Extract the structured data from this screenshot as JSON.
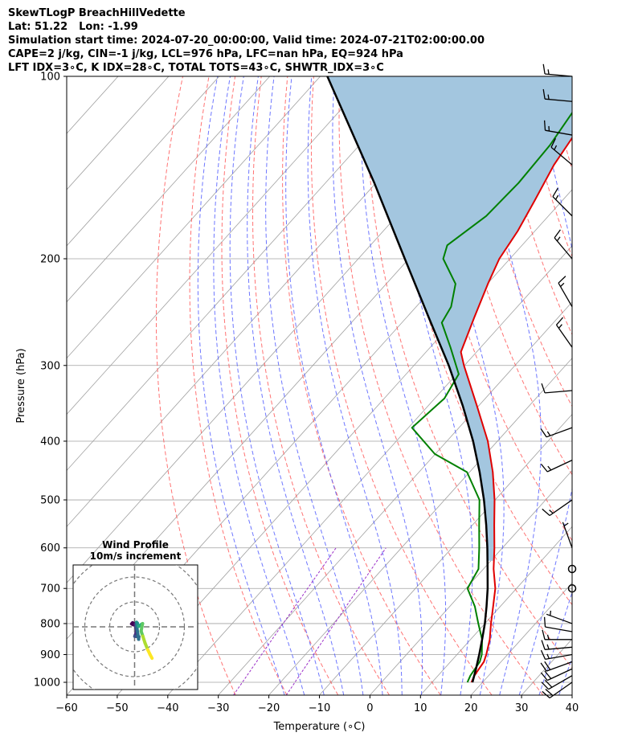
{
  "header": {
    "title": "SkewTLogP BreachHillVedette",
    "lat_label": "Lat: 51.22",
    "lon_label": "Lon: -1.99",
    "sim_line": "Simulation start time: 2024-07-20_00:00:00, Valid time: 2024-07-21T02:00:00.00",
    "cape_line": "CAPE=2 j/kg, CIN=-1 j/kg, LCL=976 hPa, LFC=nan hPa, EQ=924 hPa",
    "index_line": "LFT IDX=3∘C, K IDX=28∘C, TOTAL TOTS=43∘C, SHWTR_IDX=3∘C"
  },
  "colors": {
    "temperature": "#e00000",
    "dewpoint": "#008000",
    "parcel": "#000000",
    "cape_fill": "#a3c6df",
    "dry_adiabat": "#ff5050",
    "moist_adiabat": "#4a55ff",
    "mixing_ratio": "#9b30c8",
    "isotherm": "#a0a0a0"
  },
  "chart_data": {
    "type": "skewt",
    "xlabel": "Temperature (∘C)",
    "ylabel": "Pressure (hPa)",
    "xlim": [
      -60,
      40
    ],
    "ylim": [
      1050,
      100
    ],
    "xticks": [
      -60,
      -50,
      -40,
      -30,
      -20,
      -10,
      0,
      10,
      20,
      30,
      40
    ],
    "xtick_labels": [
      "−60",
      "−50",
      "−40",
      "−30",
      "−20",
      "−10",
      "0",
      "10",
      "20",
      "30",
      "40"
    ],
    "yticks": [
      1000,
      900,
      800,
      700,
      600,
      500,
      400,
      300,
      200,
      100
    ],
    "ytick_labels": [
      "1000",
      "900",
      "800",
      "700",
      "600",
      "500",
      "400",
      "300",
      "200",
      "100"
    ],
    "temperature": [
      {
        "p": 1000,
        "t": 17.8
      },
      {
        "p": 975,
        "t": 17.2
      },
      {
        "p": 950,
        "t": 16.9
      },
      {
        "p": 925,
        "t": 16.6
      },
      {
        "p": 900,
        "t": 15.8
      },
      {
        "p": 850,
        "t": 13.8
      },
      {
        "p": 800,
        "t": 11.2
      },
      {
        "p": 750,
        "t": 8.6
      },
      {
        "p": 700,
        "t": 5.8
      },
      {
        "p": 650,
        "t": 2.0
      },
      {
        "p": 600,
        "t": -1.6
      },
      {
        "p": 550,
        "t": -5.7
      },
      {
        "p": 500,
        "t": -10.1
      },
      {
        "p": 450,
        "t": -15.4
      },
      {
        "p": 400,
        "t": -21.9
      },
      {
        "p": 350,
        "t": -30.3
      },
      {
        "p": 300,
        "t": -40.1
      },
      {
        "p": 285,
        "t": -43.1
      },
      {
        "p": 250,
        "t": -46.6
      },
      {
        "p": 220,
        "t": -49.9
      },
      {
        "p": 200,
        "t": -52.1
      },
      {
        "p": 180,
        "t": -53.4
      },
      {
        "p": 160,
        "t": -55.5
      },
      {
        "p": 140,
        "t": -58.0
      },
      {
        "p": 120,
        "t": -59.8
      },
      {
        "p": 100,
        "t": -63.1
      }
    ],
    "dewpoint": [
      {
        "p": 1000,
        "t": 17.0
      },
      {
        "p": 975,
        "t": 16.4
      },
      {
        "p": 950,
        "t": 16.1
      },
      {
        "p": 925,
        "t": 15.8
      },
      {
        "p": 900,
        "t": 14.9
      },
      {
        "p": 850,
        "t": 12.3
      },
      {
        "p": 800,
        "t": 8.7
      },
      {
        "p": 750,
        "t": 5.0
      },
      {
        "p": 700,
        "t": 0.3
      },
      {
        "p": 650,
        "t": -1.0
      },
      {
        "p": 600,
        "t": -4.6
      },
      {
        "p": 550,
        "t": -8.7
      },
      {
        "p": 500,
        "t": -13.1
      },
      {
        "p": 450,
        "t": -20.5
      },
      {
        "p": 420,
        "t": -30.1
      },
      {
        "p": 380,
        "t": -39.3
      },
      {
        "p": 340,
        "t": -38.1
      },
      {
        "p": 310,
        "t": -39.6
      },
      {
        "p": 280,
        "t": -46.0
      },
      {
        "p": 255,
        "t": -52.1
      },
      {
        "p": 240,
        "t": -53.1
      },
      {
        "p": 220,
        "t": -56.3
      },
      {
        "p": 200,
        "t": -63.2
      },
      {
        "p": 190,
        "t": -64.8
      },
      {
        "p": 170,
        "t": -62.3
      },
      {
        "p": 150,
        "t": -61.8
      },
      {
        "p": 130,
        "t": -62.3
      },
      {
        "p": 100,
        "t": -65.2
      }
    ],
    "parcel": [
      {
        "p": 1000,
        "t": 18.0
      },
      {
        "p": 950,
        "t": 16.3
      },
      {
        "p": 900,
        "t": 14.4
      },
      {
        "p": 850,
        "t": 12.3
      },
      {
        "p": 800,
        "t": 10.0
      },
      {
        "p": 750,
        "t": 7.3
      },
      {
        "p": 700,
        "t": 4.3
      },
      {
        "p": 650,
        "t": 0.8
      },
      {
        "p": 600,
        "t": -3.0
      },
      {
        "p": 550,
        "t": -7.3
      },
      {
        "p": 500,
        "t": -12.2
      },
      {
        "p": 450,
        "t": -18.0
      },
      {
        "p": 400,
        "t": -24.8
      },
      {
        "p": 350,
        "t": -33.1
      },
      {
        "p": 300,
        "t": -43.1
      },
      {
        "p": 250,
        "t": -55.6
      },
      {
        "p": 200,
        "t": -70.8
      },
      {
        "p": 150,
        "t": -90.3
      },
      {
        "p": 100,
        "t": -118.6
      }
    ],
    "wind_barbs": [
      {
        "p": 1000,
        "speed_kt": 20,
        "dir_deg": 235
      },
      {
        "p": 975,
        "speed_kt": 20,
        "dir_deg": 240
      },
      {
        "p": 950,
        "speed_kt": 20,
        "dir_deg": 245
      },
      {
        "p": 925,
        "speed_kt": 20,
        "dir_deg": 250
      },
      {
        "p": 900,
        "speed_kt": 15,
        "dir_deg": 260
      },
      {
        "p": 875,
        "speed_kt": 15,
        "dir_deg": 265
      },
      {
        "p": 850,
        "speed_kt": 15,
        "dir_deg": 270
      },
      {
        "p": 825,
        "speed_kt": 10,
        "dir_deg": 280
      },
      {
        "p": 800,
        "speed_kt": 5,
        "dir_deg": 290
      },
      {
        "p": 700,
        "speed_kt": 0,
        "dir_deg": 0
      },
      {
        "p": 650,
        "speed_kt": 0,
        "dir_deg": 0
      },
      {
        "p": 600,
        "speed_kt": 5,
        "dir_deg": 340
      },
      {
        "p": 500,
        "speed_kt": 15,
        "dir_deg": 235
      },
      {
        "p": 430,
        "speed_kt": 15,
        "dir_deg": 245
      },
      {
        "p": 380,
        "speed_kt": 15,
        "dir_deg": 250
      },
      {
        "p": 330,
        "speed_kt": 10,
        "dir_deg": 265
      },
      {
        "p": 280,
        "speed_kt": 15,
        "dir_deg": 325
      },
      {
        "p": 240,
        "speed_kt": 15,
        "dir_deg": 330
      },
      {
        "p": 200,
        "speed_kt": 15,
        "dir_deg": 320
      },
      {
        "p": 170,
        "speed_kt": 15,
        "dir_deg": 315
      },
      {
        "p": 140,
        "speed_kt": 15,
        "dir_deg": 310
      },
      {
        "p": 125,
        "speed_kt": 15,
        "dir_deg": 280
      },
      {
        "p": 110,
        "speed_kt": 15,
        "dir_deg": 275
      },
      {
        "p": 100,
        "speed_kt": 15,
        "dir_deg": 275
      }
    ],
    "hodograph": {
      "title": "Wind Profile",
      "subtitle": "10m/s increment",
      "rings": [
        10,
        20,
        30,
        40
      ],
      "range": 25,
      "points": [
        {
          "u": -0.5,
          "v": 0.8
        },
        {
          "u": -1.2,
          "v": 1.2
        },
        {
          "u": -0.8,
          "v": 1.6
        },
        {
          "u": 0.3,
          "v": 1.0
        },
        {
          "u": 0.8,
          "v": -1.8
        },
        {
          "u": 0.1,
          "v": -3.8
        },
        {
          "u": 1.7,
          "v": -4.0
        },
        {
          "u": 1.6,
          "v": -5.0
        },
        {
          "u": 0.8,
          "v": 0.5
        },
        {
          "u": 1.1,
          "v": 1.5
        },
        {
          "u": 0.8,
          "v": 1.8
        },
        {
          "u": 1.6,
          "v": 0.2
        },
        {
          "u": 2.6,
          "v": 0.9
        },
        {
          "u": 3.2,
          "v": 1.3
        },
        {
          "u": 2.6,
          "v": -1.7
        },
        {
          "u": 3.3,
          "v": -3.7
        },
        {
          "u": 4.2,
          "v": -6.5
        },
        {
          "u": 5.3,
          "v": -9.2
        },
        {
          "u": 6.2,
          "v": -11.1
        },
        {
          "u": 7.0,
          "v": -12.6
        }
      ]
    }
  }
}
